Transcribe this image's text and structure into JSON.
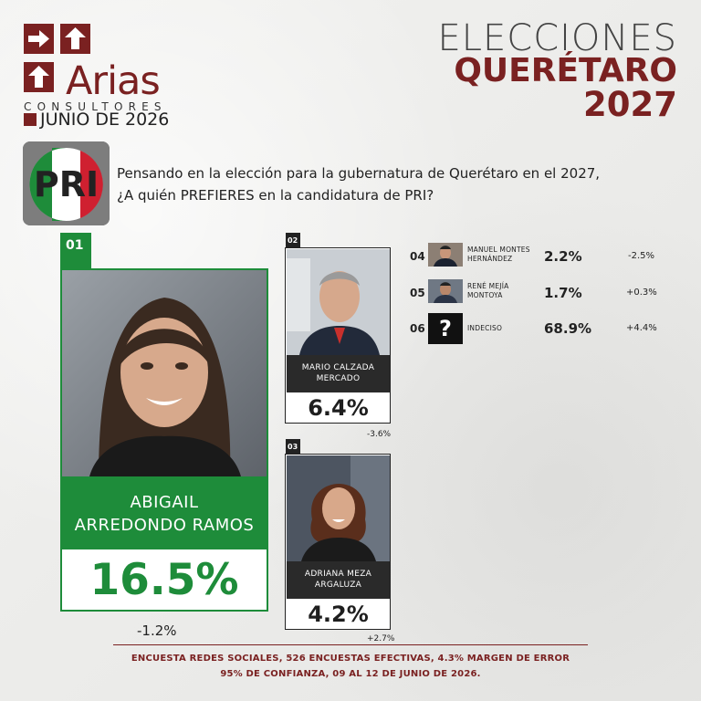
{
  "brand": {
    "name": "Arias",
    "subtitle": "CONSULTORES",
    "date": "JUNIO DE 2026",
    "color": "#7a2121"
  },
  "header": {
    "line1": "ELECCIONES",
    "line2": "QUERÉTARO",
    "line3": "2027"
  },
  "party": {
    "logo_text": "PRI",
    "colors": [
      "#1e8c3a",
      "#ffffff",
      "#cf2030"
    ]
  },
  "question": {
    "line1": "Pensando en la elección para la gubernatura de Querétaro en el 2027,",
    "line2": "¿A quién PREFIERES en la candidatura de PRI?"
  },
  "candidates": [
    {
      "rank": "01",
      "name_line1": "ABIGAIL",
      "name_line2": "ARREDONDO RAMOS",
      "percent": "16.5%",
      "change": "-1.2%"
    },
    {
      "rank": "02",
      "name_line1": "MARIO CALZADA",
      "name_line2": "MERCADO",
      "percent": "6.4%",
      "change": "-3.6%"
    },
    {
      "rank": "03",
      "name_line1": "ADRIANA MEZA",
      "name_line2": "ARGALUZA",
      "percent": "4.2%",
      "change": "+2.7%"
    }
  ],
  "others": [
    {
      "rank": "04",
      "name_line1": "MANUEL MONTES",
      "name_line2": "HERNÁNDEZ",
      "percent": "2.2%",
      "change": "-2.5%",
      "icon": "person-photo-icon"
    },
    {
      "rank": "05",
      "name_line1": "RENÉ MEJÍA",
      "name_line2": "MONTOYA",
      "percent": "1.7%",
      "change": "+0.3%",
      "icon": "person-photo-icon"
    },
    {
      "rank": "06",
      "name_line1": "INDECISO",
      "name_line2": "",
      "percent": "68.9%",
      "change": "+4.4%",
      "icon": "question-mark-icon",
      "glyph": "?"
    }
  ],
  "footer": {
    "line1": "ENCUESTA REDES SOCIALES, 526 ENCUESTAS EFECTIVAS, 4.3%  MARGEN DE ERROR",
    "line2": "95% DE CONFIANZA, 09 AL 12 DE JUNIO DE 2026."
  }
}
